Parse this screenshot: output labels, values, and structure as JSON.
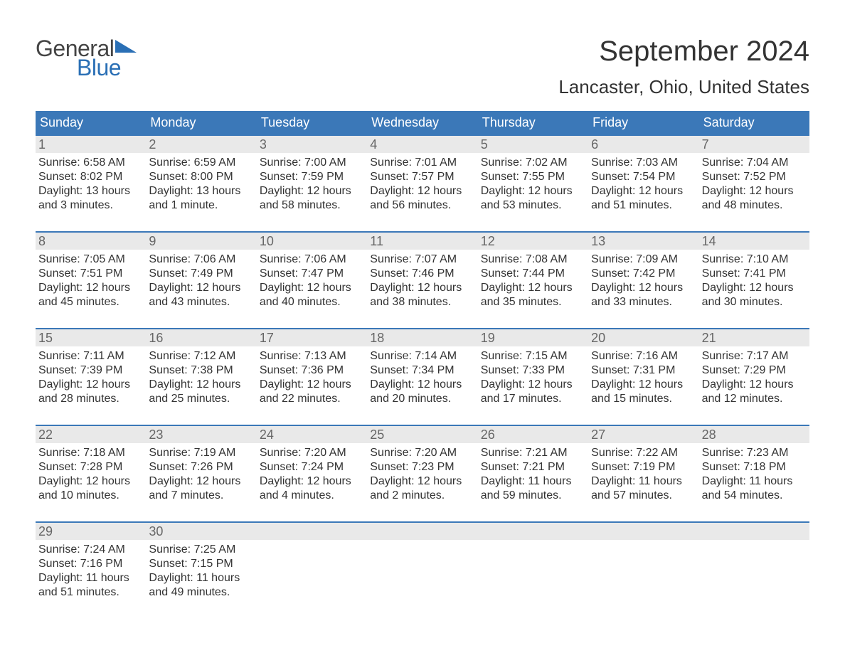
{
  "logo": {
    "word1": "General",
    "word2": "Blue",
    "text_color_1": "#444444",
    "text_color_2": "#2a6fb5",
    "triangle_color": "#2a6fb5"
  },
  "header": {
    "month_title": "September 2024",
    "location": "Lancaster, Ohio, United States",
    "title_fontsize": 40,
    "location_fontsize": 26,
    "title_color": "#333333"
  },
  "day_headers": [
    "Sunday",
    "Monday",
    "Tuesday",
    "Wednesday",
    "Thursday",
    "Friday",
    "Saturday"
  ],
  "styling": {
    "header_bg": "#3b78b8",
    "header_text_color": "#ffffff",
    "daynum_bg": "#e9e9e9",
    "daynum_color": "#666666",
    "row_border_color": "#3b78b8",
    "body_text_color": "#333333",
    "background": "#ffffff",
    "header_fontsize": 18,
    "daynum_fontsize": 18,
    "body_fontsize": 16,
    "columns": 7
  },
  "weeks": [
    [
      {
        "num": "1",
        "sunrise": "Sunrise: 6:58 AM",
        "sunset": "Sunset: 8:02 PM",
        "daylight": "Daylight: 13 hours and 3 minutes."
      },
      {
        "num": "2",
        "sunrise": "Sunrise: 6:59 AM",
        "sunset": "Sunset: 8:00 PM",
        "daylight": "Daylight: 13 hours and 1 minute."
      },
      {
        "num": "3",
        "sunrise": "Sunrise: 7:00 AM",
        "sunset": "Sunset: 7:59 PM",
        "daylight": "Daylight: 12 hours and 58 minutes."
      },
      {
        "num": "4",
        "sunrise": "Sunrise: 7:01 AM",
        "sunset": "Sunset: 7:57 PM",
        "daylight": "Daylight: 12 hours and 56 minutes."
      },
      {
        "num": "5",
        "sunrise": "Sunrise: 7:02 AM",
        "sunset": "Sunset: 7:55 PM",
        "daylight": "Daylight: 12 hours and 53 minutes."
      },
      {
        "num": "6",
        "sunrise": "Sunrise: 7:03 AM",
        "sunset": "Sunset: 7:54 PM",
        "daylight": "Daylight: 12 hours and 51 minutes."
      },
      {
        "num": "7",
        "sunrise": "Sunrise: 7:04 AM",
        "sunset": "Sunset: 7:52 PM",
        "daylight": "Daylight: 12 hours and 48 minutes."
      }
    ],
    [
      {
        "num": "8",
        "sunrise": "Sunrise: 7:05 AM",
        "sunset": "Sunset: 7:51 PM",
        "daylight": "Daylight: 12 hours and 45 minutes."
      },
      {
        "num": "9",
        "sunrise": "Sunrise: 7:06 AM",
        "sunset": "Sunset: 7:49 PM",
        "daylight": "Daylight: 12 hours and 43 minutes."
      },
      {
        "num": "10",
        "sunrise": "Sunrise: 7:06 AM",
        "sunset": "Sunset: 7:47 PM",
        "daylight": "Daylight: 12 hours and 40 minutes."
      },
      {
        "num": "11",
        "sunrise": "Sunrise: 7:07 AM",
        "sunset": "Sunset: 7:46 PM",
        "daylight": "Daylight: 12 hours and 38 minutes."
      },
      {
        "num": "12",
        "sunrise": "Sunrise: 7:08 AM",
        "sunset": "Sunset: 7:44 PM",
        "daylight": "Daylight: 12 hours and 35 minutes."
      },
      {
        "num": "13",
        "sunrise": "Sunrise: 7:09 AM",
        "sunset": "Sunset: 7:42 PM",
        "daylight": "Daylight: 12 hours and 33 minutes."
      },
      {
        "num": "14",
        "sunrise": "Sunrise: 7:10 AM",
        "sunset": "Sunset: 7:41 PM",
        "daylight": "Daylight: 12 hours and 30 minutes."
      }
    ],
    [
      {
        "num": "15",
        "sunrise": "Sunrise: 7:11 AM",
        "sunset": "Sunset: 7:39 PM",
        "daylight": "Daylight: 12 hours and 28 minutes."
      },
      {
        "num": "16",
        "sunrise": "Sunrise: 7:12 AM",
        "sunset": "Sunset: 7:38 PM",
        "daylight": "Daylight: 12 hours and 25 minutes."
      },
      {
        "num": "17",
        "sunrise": "Sunrise: 7:13 AM",
        "sunset": "Sunset: 7:36 PM",
        "daylight": "Daylight: 12 hours and 22 minutes."
      },
      {
        "num": "18",
        "sunrise": "Sunrise: 7:14 AM",
        "sunset": "Sunset: 7:34 PM",
        "daylight": "Daylight: 12 hours and 20 minutes."
      },
      {
        "num": "19",
        "sunrise": "Sunrise: 7:15 AM",
        "sunset": "Sunset: 7:33 PM",
        "daylight": "Daylight: 12 hours and 17 minutes."
      },
      {
        "num": "20",
        "sunrise": "Sunrise: 7:16 AM",
        "sunset": "Sunset: 7:31 PM",
        "daylight": "Daylight: 12 hours and 15 minutes."
      },
      {
        "num": "21",
        "sunrise": "Sunrise: 7:17 AM",
        "sunset": "Sunset: 7:29 PM",
        "daylight": "Daylight: 12 hours and 12 minutes."
      }
    ],
    [
      {
        "num": "22",
        "sunrise": "Sunrise: 7:18 AM",
        "sunset": "Sunset: 7:28 PM",
        "daylight": "Daylight: 12 hours and 10 minutes."
      },
      {
        "num": "23",
        "sunrise": "Sunrise: 7:19 AM",
        "sunset": "Sunset: 7:26 PM",
        "daylight": "Daylight: 12 hours and 7 minutes."
      },
      {
        "num": "24",
        "sunrise": "Sunrise: 7:20 AM",
        "sunset": "Sunset: 7:24 PM",
        "daylight": "Daylight: 12 hours and 4 minutes."
      },
      {
        "num": "25",
        "sunrise": "Sunrise: 7:20 AM",
        "sunset": "Sunset: 7:23 PM",
        "daylight": "Daylight: 12 hours and 2 minutes."
      },
      {
        "num": "26",
        "sunrise": "Sunrise: 7:21 AM",
        "sunset": "Sunset: 7:21 PM",
        "daylight": "Daylight: 11 hours and 59 minutes."
      },
      {
        "num": "27",
        "sunrise": "Sunrise: 7:22 AM",
        "sunset": "Sunset: 7:19 PM",
        "daylight": "Daylight: 11 hours and 57 minutes."
      },
      {
        "num": "28",
        "sunrise": "Sunrise: 7:23 AM",
        "sunset": "Sunset: 7:18 PM",
        "daylight": "Daylight: 11 hours and 54 minutes."
      }
    ],
    [
      {
        "num": "29",
        "sunrise": "Sunrise: 7:24 AM",
        "sunset": "Sunset: 7:16 PM",
        "daylight": "Daylight: 11 hours and 51 minutes."
      },
      {
        "num": "30",
        "sunrise": "Sunrise: 7:25 AM",
        "sunset": "Sunset: 7:15 PM",
        "daylight": "Daylight: 11 hours and 49 minutes."
      },
      {
        "num": "",
        "sunrise": "",
        "sunset": "",
        "daylight": ""
      },
      {
        "num": "",
        "sunrise": "",
        "sunset": "",
        "daylight": ""
      },
      {
        "num": "",
        "sunrise": "",
        "sunset": "",
        "daylight": ""
      },
      {
        "num": "",
        "sunrise": "",
        "sunset": "",
        "daylight": ""
      },
      {
        "num": "",
        "sunrise": "",
        "sunset": "",
        "daylight": ""
      }
    ]
  ]
}
